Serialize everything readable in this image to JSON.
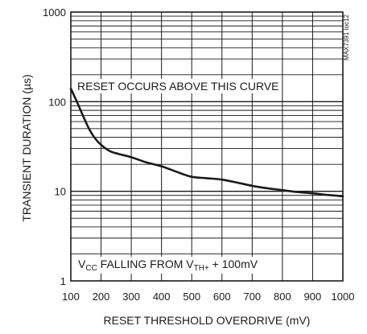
{
  "chart_data": {
    "type": "line",
    "xlabel": "RESET THRESHOLD OVERDRIVE (mV)",
    "ylabel": "TRANSIENT DURATION (µs)",
    "xlim": [
      100,
      1000
    ],
    "ylim": [
      1,
      1000
    ],
    "yscale": "log",
    "grid": true,
    "x_ticks": [
      "100",
      "200",
      "300",
      "400",
      "500",
      "600",
      "700",
      "800",
      "900",
      "1000"
    ],
    "y_ticks": [
      "1",
      "10",
      "100",
      "1000"
    ],
    "series": [
      {
        "x": [
          100,
          120,
          140,
          160,
          180,
          200,
          230,
          260,
          300,
          350,
          400,
          450,
          500,
          550,
          600,
          650,
          700,
          750,
          800,
          850,
          900,
          950,
          1000
        ],
        "y": [
          140,
          100,
          70,
          50,
          39,
          33,
          28,
          26,
          24,
          21,
          19,
          16.5,
          14.5,
          14,
          13.5,
          12.5,
          11.5,
          10.8,
          10.3,
          9.8,
          9.5,
          9.1,
          8.8
        ]
      }
    ],
    "annotations": {
      "top": "RESET OCCURS ABOVE THIS CURVE",
      "bottom_v": "V",
      "bottom_cc_sub": "CC",
      "bottom_mid": " FALLING FROM V",
      "bottom_th_sub": "TH+",
      "bottom_end": " + 100mV"
    },
    "side_label": "MAX7391 toc12",
    "line_color": "#1a1a1a",
    "grid_color": "#1a1a1a"
  }
}
